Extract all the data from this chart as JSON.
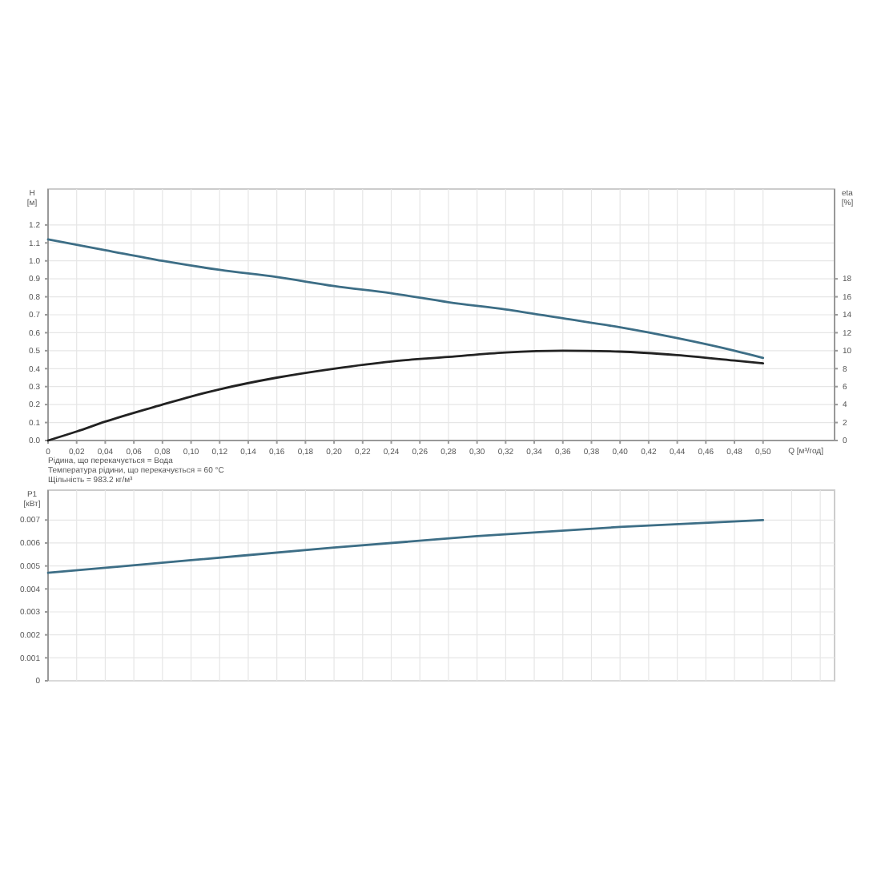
{
  "chart_data": [
    {
      "type": "line",
      "xlabel": "Q [м³/год]",
      "ylabel": "H [м]",
      "y2label": "eta [%]",
      "xlim": [
        0,
        0.55
      ],
      "xticks": [
        0,
        {
          "value": 0.02,
          "label": "0,02"
        },
        {
          "value": 0.04,
          "label": "0,04"
        },
        {
          "value": 0.06,
          "label": "0,06"
        },
        {
          "value": 0.08,
          "label": "0,08"
        },
        {
          "value": 0.1,
          "label": "0,10"
        },
        {
          "value": 0.12,
          "label": "0,12"
        },
        {
          "value": 0.14,
          "label": "0,14"
        },
        {
          "value": 0.16,
          "label": "0,16"
        },
        {
          "value": 0.18,
          "label": "0,18"
        },
        {
          "value": 0.2,
          "label": "0,20"
        },
        {
          "value": 0.22,
          "label": "0,22"
        },
        {
          "value": 0.24,
          "label": "0,24"
        },
        {
          "value": 0.26,
          "label": "0,26"
        },
        {
          "value": 0.28,
          "label": "0,28"
        },
        {
          "value": 0.3,
          "label": "0,30"
        },
        {
          "value": 0.32,
          "label": "0,32"
        },
        {
          "value": 0.34,
          "label": "0,34"
        },
        {
          "value": 0.36,
          "label": "0,36"
        },
        {
          "value": 0.38,
          "label": "0,38"
        },
        {
          "value": 0.4,
          "label": "0,40"
        },
        {
          "value": 0.42,
          "label": "0,42"
        },
        {
          "value": 0.44,
          "label": "0,44"
        },
        {
          "value": 0.46,
          "label": "0,46"
        },
        {
          "value": 0.48,
          "label": "0,48"
        },
        {
          "value": 0.5,
          "label": "0,50"
        }
      ],
      "ylim": [
        0,
        1.4
      ],
      "yticks": [
        {
          "value": 0,
          "label": "0.0"
        },
        0.1,
        0.2,
        0.3,
        0.4,
        0.5,
        0.6,
        0.7,
        0.8,
        0.9,
        {
          "value": 1,
          "label": "1.0"
        },
        1.1,
        1.2
      ],
      "y2lim": [
        0,
        28
      ],
      "y2ticks": [
        0,
        2,
        4,
        6,
        8,
        10,
        12,
        14,
        16,
        18
      ],
      "grid": true,
      "series": [
        {
          "color": "#3d6e86",
          "x": [
            0,
            0.04,
            0.08,
            0.12,
            0.16,
            0.2,
            0.24,
            0.28,
            0.32,
            0.36,
            0.4,
            0.44,
            0.48,
            0.5
          ],
          "values": [
            1.12,
            1.06,
            1.0,
            0.95,
            0.91,
            0.86,
            0.82,
            0.77,
            0.73,
            0.68,
            0.63,
            0.57,
            0.5,
            0.46
          ]
        },
        {
          "color": "#222222",
          "axis": "y2",
          "x": [
            0,
            0.02,
            0.04,
            0.08,
            0.1,
            0.12,
            0.16,
            0.2,
            0.24,
            0.28,
            0.32,
            0.36,
            0.4,
            0.44,
            0.48,
            0.5
          ],
          "values": [
            0,
            1.0,
            2.1,
            4.0,
            4.9,
            5.7,
            7.0,
            8.0,
            8.8,
            9.3,
            9.8,
            10.0,
            9.9,
            9.5,
            8.9,
            8.6
          ]
        }
      ],
      "annotations": [
        "Рідина, що перекачується = Вода",
        "Температура рідини, що перекачується = 60 °C",
        "Щільність = 983.2 кг/м³"
      ]
    },
    {
      "type": "line",
      "ylabel": "P1 [кВт]",
      "xlim": [
        0,
        0.55
      ],
      "ylim": [
        0,
        0.0083
      ],
      "yticks": [
        0,
        0.001,
        0.002,
        0.003,
        0.004,
        0.005,
        0.006,
        0.007
      ],
      "tick_labels": "y",
      "grid": true,
      "series": [
        {
          "color": "#3d6e86",
          "x": [
            0,
            0.1,
            0.2,
            0.3,
            0.4,
            0.5
          ],
          "values": [
            0.0047,
            0.00525,
            0.0058,
            0.0063,
            0.0067,
            0.007
          ]
        }
      ]
    }
  ]
}
